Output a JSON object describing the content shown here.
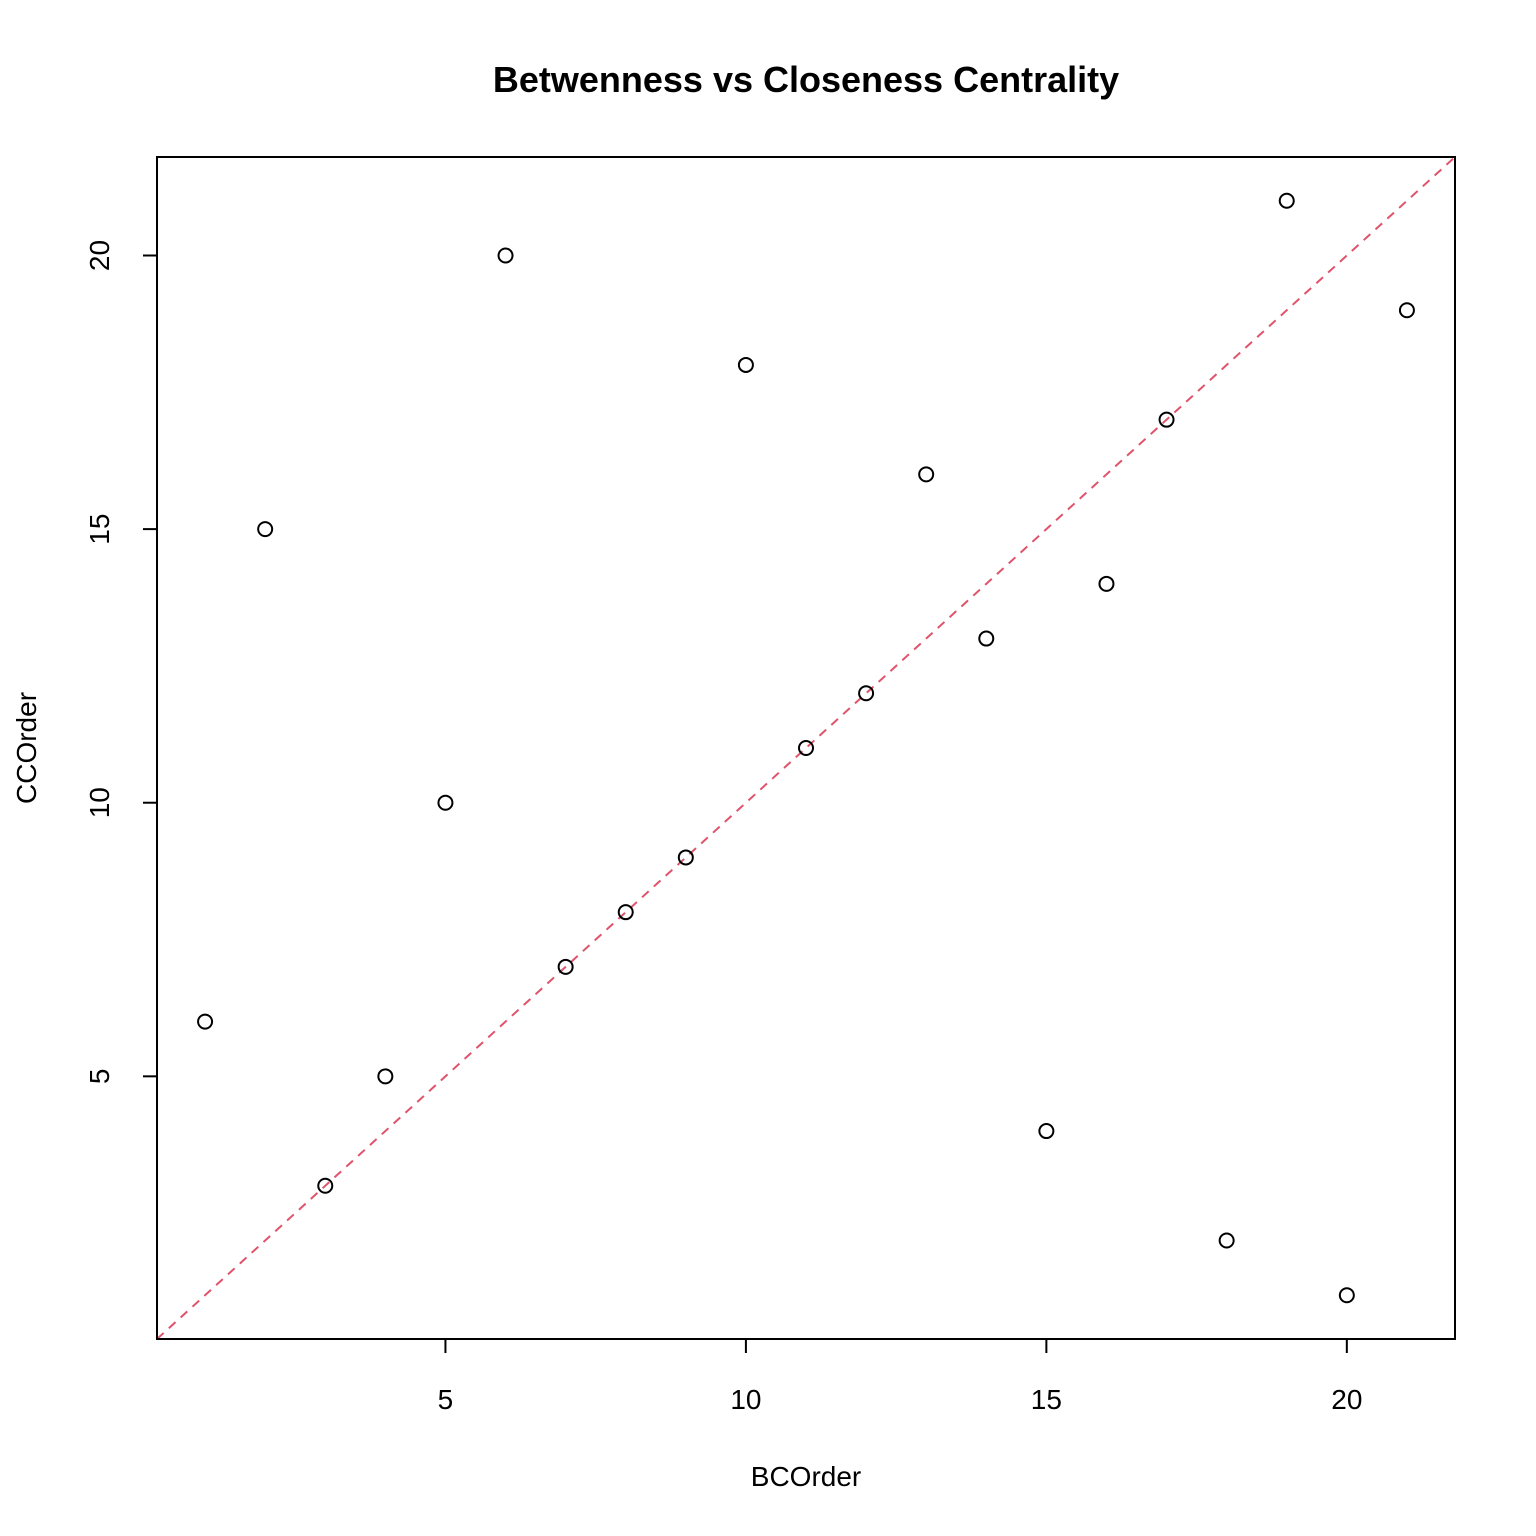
{
  "chart_data": {
    "type": "scatter",
    "title": "Betwenness vs Closeness Centrality",
    "xlabel": "BCOrder",
    "ylabel": "CCOrder",
    "xlim": [
      0.2,
      21.8
    ],
    "ylim": [
      0.2,
      21.8
    ],
    "x_ticks": [
      5,
      10,
      15,
      20
    ],
    "y_ticks": [
      5,
      10,
      15,
      20
    ],
    "points": [
      {
        "x": 1,
        "y": 6
      },
      {
        "x": 2,
        "y": 15
      },
      {
        "x": 3,
        "y": 3
      },
      {
        "x": 4,
        "y": 5
      },
      {
        "x": 5,
        "y": 10
      },
      {
        "x": 6,
        "y": 20
      },
      {
        "x": 7,
        "y": 7
      },
      {
        "x": 8,
        "y": 8
      },
      {
        "x": 9,
        "y": 9
      },
      {
        "x": 10,
        "y": 18
      },
      {
        "x": 11,
        "y": 11
      },
      {
        "x": 12,
        "y": 12
      },
      {
        "x": 13,
        "y": 16
      },
      {
        "x": 14,
        "y": 13
      },
      {
        "x": 15,
        "y": 4
      },
      {
        "x": 16,
        "y": 14
      },
      {
        "x": 17,
        "y": 17
      },
      {
        "x": 18,
        "y": 2
      },
      {
        "x": 19,
        "y": 21
      },
      {
        "x": 20,
        "y": 1
      },
      {
        "x": 21,
        "y": 19
      }
    ],
    "reference_line": {
      "slope": 1,
      "intercept": 0,
      "style": "dashed",
      "color": "#DF536B"
    },
    "grid": false,
    "legend": "none",
    "marker": "open-circle",
    "marker_color": "#000000"
  }
}
